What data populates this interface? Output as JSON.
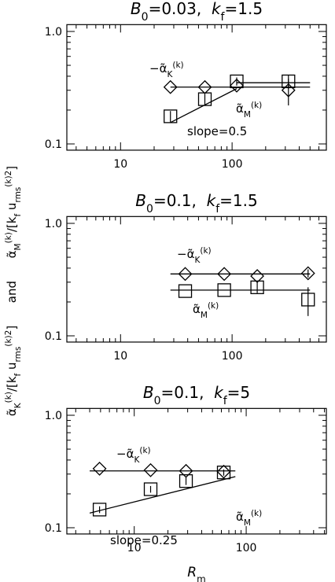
{
  "ylabel": [
    {
      "t": "α̃"
    },
    {
      "t": "K",
      "pos": "sub"
    },
    {
      "t": "(k)",
      "pos": "sup"
    },
    {
      "t": "/[k"
    },
    {
      "t": "f",
      "pos": "sub"
    },
    {
      "t": " u"
    },
    {
      "t": "rms",
      "pos": "sub"
    },
    {
      "t": "(k)2",
      "pos": "sup"
    },
    {
      "t": "]      and      α̃"
    },
    {
      "t": "M",
      "pos": "sub"
    },
    {
      "t": "(k)",
      "pos": "sup"
    },
    {
      "t": "/[k"
    },
    {
      "t": "f",
      "pos": "sub"
    },
    {
      "t": " u"
    },
    {
      "t": "rms",
      "pos": "sub"
    },
    {
      "t": "(k)2",
      "pos": "sup"
    },
    {
      "t": "]"
    }
  ],
  "xlabel": [
    {
      "t": "R",
      "style": "italic"
    },
    {
      "t": "m",
      "pos": "sub"
    }
  ],
  "chart_data": [
    {
      "type": "scatter",
      "log_x": true,
      "log_y": true,
      "title": [
        {
          "t": "B",
          "style": "italic"
        },
        {
          "t": "0",
          "pos": "sub"
        },
        {
          "t": "=0.03,  "
        },
        {
          "t": "k",
          "style": "italic"
        },
        {
          "t": "f",
          "pos": "sub"
        },
        {
          "t": "=1.5"
        }
      ],
      "xlim": [
        3.3,
        700
      ],
      "ylim": [
        0.088,
        1.15
      ],
      "xticks": [
        10,
        100
      ],
      "xminorticks": [
        4,
        5,
        6,
        7,
        8,
        9,
        20,
        30,
        40,
        50,
        60,
        70,
        80,
        90,
        200,
        300,
        400,
        500,
        600
      ],
      "yticks": [
        {
          "value": 0.1,
          "label": "0.1"
        },
        {
          "value": 1,
          "label": "1.0"
        }
      ],
      "yminorticks": [
        0.2,
        0.3,
        0.4,
        0.5,
        0.6,
        0.7,
        0.8,
        0.9
      ],
      "series": [
        {
          "label": [
            {
              "t": "−α̃"
            },
            {
              "t": "K",
              "pos": "sub"
            },
            {
              "t": "(k)",
              "pos": "sup"
            }
          ],
          "marker": "diamond",
          "color": "#000",
          "x": [
            28,
            57,
            110,
            320
          ],
          "values": [
            0.32,
            0.32,
            0.33,
            0.3
          ],
          "errors": [
            null,
            null,
            null,
            0.08
          ],
          "fits": [
            {
              "x": [
                28,
                500
              ],
              "values": [
                0.32,
                0.32
              ]
            }
          ]
        },
        {
          "label": [
            {
              "t": "α̃"
            },
            {
              "t": "M",
              "pos": "sub"
            },
            {
              "t": "(k)",
              "pos": "sup"
            }
          ],
          "marker": "square",
          "color": "#000",
          "x": [
            28,
            57,
            110,
            320
          ],
          "values": [
            0.176,
            0.25,
            0.36,
            0.36
          ],
          "errors": [
            0.02,
            0.03,
            0.03,
            0.05
          ],
          "fits": [
            {
              "x": [
                28,
                110
              ],
              "values": [
                0.155,
                0.31
              ]
            },
            {
              "x": [
                110,
                500
              ],
              "values": [
                0.35,
                0.35
              ]
            }
          ]
        }
      ],
      "annotations": [
        "slope=0.5"
      ]
    },
    {
      "type": "scatter",
      "log_x": true,
      "log_y": true,
      "title": [
        {
          "t": "B",
          "style": "italic"
        },
        {
          "t": "0",
          "pos": "sub"
        },
        {
          "t": "=0.1,  "
        },
        {
          "t": "k",
          "style": "italic"
        },
        {
          "t": "f",
          "pos": "sub"
        },
        {
          "t": "=1.5"
        }
      ],
      "xlim": [
        3.3,
        700
      ],
      "ylim": [
        0.088,
        1.15
      ],
      "xticks": [
        10,
        100
      ],
      "xminorticks": [
        4,
        5,
        6,
        7,
        8,
        9,
        20,
        30,
        40,
        50,
        60,
        70,
        80,
        90,
        200,
        300,
        400,
        500,
        600
      ],
      "yticks": [
        {
          "value": 0.1,
          "label": "0.1"
        },
        {
          "value": 1,
          "label": "1.0"
        }
      ],
      "yminorticks": [
        0.2,
        0.3,
        0.4,
        0.5,
        0.6,
        0.7,
        0.8,
        0.9
      ],
      "series": [
        {
          "label": [
            {
              "t": "−α̃"
            },
            {
              "t": "K",
              "pos": "sub"
            },
            {
              "t": "(k)",
              "pos": "sup"
            }
          ],
          "marker": "diamond",
          "color": "#000",
          "x": [
            38,
            85,
            168,
            480
          ],
          "values": [
            0.355,
            0.355,
            0.34,
            0.36
          ],
          "errors": [
            null,
            null,
            null,
            0.03
          ],
          "fits": [
            {
              "x": [
                28,
                500
              ],
              "values": [
                0.355,
                0.355
              ]
            }
          ]
        },
        {
          "label": [
            {
              "t": "α̃"
            },
            {
              "t": "M",
              "pos": "sub"
            },
            {
              "t": "(k)",
              "pos": "sup"
            }
          ],
          "marker": "square",
          "color": "#000",
          "x": [
            38,
            85,
            168,
            480
          ],
          "values": [
            0.25,
            0.255,
            0.27,
            0.21
          ],
          "errors": [
            null,
            null,
            0.03,
            0.06
          ],
          "fits": [
            {
              "x": [
                28,
                500
              ],
              "values": [
                0.255,
                0.255
              ]
            }
          ]
        }
      ],
      "annotations": []
    },
    {
      "type": "scatter",
      "log_x": true,
      "log_y": true,
      "title": [
        {
          "t": "B",
          "style": "italic"
        },
        {
          "t": "0",
          "pos": "sub"
        },
        {
          "t": "=0.1,  "
        },
        {
          "t": "k",
          "style": "italic"
        },
        {
          "t": "f",
          "pos": "sub"
        },
        {
          "t": "=5"
        }
      ],
      "xlim": [
        2.5,
        520
      ],
      "ylim": [
        0.088,
        1.15
      ],
      "xticks": [
        10,
        100
      ],
      "xminorticks": [
        3,
        4,
        5,
        6,
        7,
        8,
        9,
        20,
        30,
        40,
        50,
        60,
        70,
        80,
        90,
        200,
        300,
        400,
        500
      ],
      "yticks": [
        {
          "value": 0.1,
          "label": "0.1"
        },
        {
          "value": 1,
          "label": "1.0"
        }
      ],
      "yminorticks": [
        0.2,
        0.3,
        0.4,
        0.5,
        0.6,
        0.7,
        0.8,
        0.9
      ],
      "series": [
        {
          "label": [
            {
              "t": "−α̃"
            },
            {
              "t": "K",
              "pos": "sub"
            },
            {
              "t": "(k)",
              "pos": "sup"
            }
          ],
          "marker": "diamond",
          "color": "#000",
          "x": [
            4.9,
            14,
            29,
            63
          ],
          "values": [
            0.335,
            0.325,
            0.32,
            0.315
          ],
          "errors": [
            null,
            null,
            null,
            null
          ],
          "fits": [
            {
              "x": [
                4,
                80
              ],
              "values": [
                0.32,
                0.32
              ]
            }
          ]
        },
        {
          "label": [
            {
              "t": "α̃"
            },
            {
              "t": "M",
              "pos": "sub"
            },
            {
              "t": "(k)",
              "pos": "sup"
            }
          ],
          "marker": "square",
          "color": "#000",
          "x": [
            4.9,
            14,
            29,
            63
          ],
          "values": [
            0.145,
            0.22,
            0.26,
            0.31
          ],
          "errors": [
            0.01,
            0.015,
            0.02,
            0.02
          ],
          "fits": [
            {
              "x": [
                4,
                80
              ],
              "values": [
                0.135,
                0.285
              ]
            }
          ]
        }
      ],
      "annotations": [
        "slope=0.25"
      ]
    }
  ]
}
